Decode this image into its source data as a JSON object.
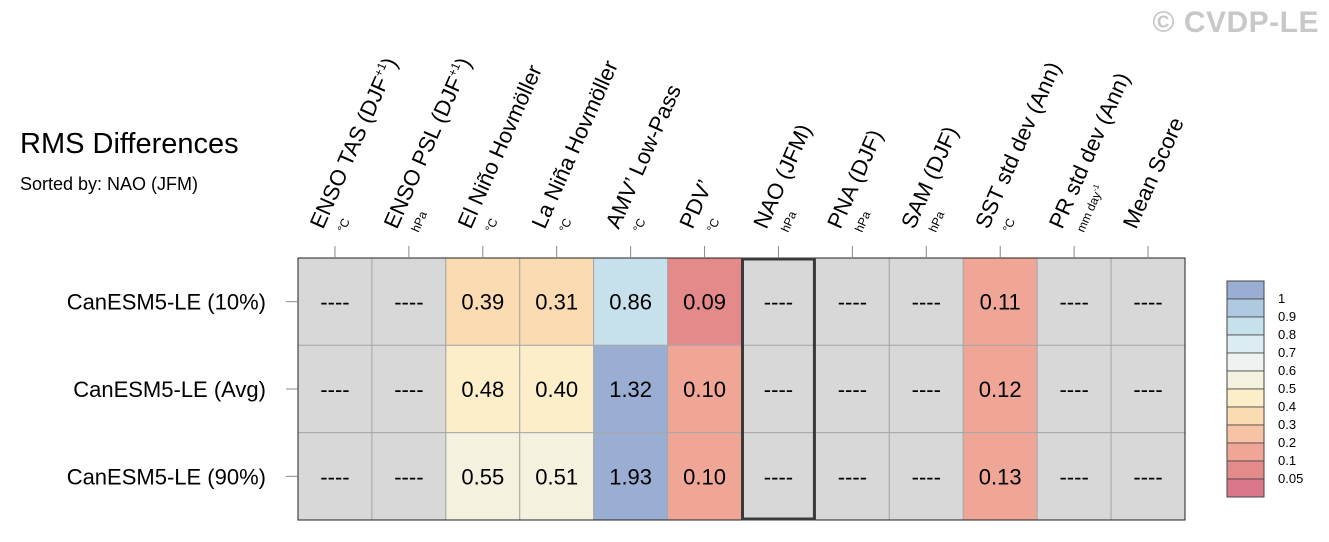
{
  "watermark": "© CVDP-LE",
  "chart_data": {
    "type": "heatmap",
    "title": "RMS Differences",
    "subtitle": "Sorted by: NAO (JFM)",
    "columns": [
      {
        "label": "ENSO TAS (DJF",
        "sup": "+1",
        "close": ")",
        "unit": "°C"
      },
      {
        "label": "ENSO PSL (DJF",
        "sup": "+1",
        "close": ")",
        "unit": "hPa"
      },
      {
        "label": "El Niño Hovmöller",
        "unit": "°C"
      },
      {
        "label": "La Niña Hovmöller",
        "unit": "°C"
      },
      {
        "label": "AMV’ Low-Pass",
        "unit": "°C"
      },
      {
        "label": "PDV’",
        "unit": "°C"
      },
      {
        "label": "NAO (JFM)",
        "unit": "hPa"
      },
      {
        "label": "PNA (DJF)",
        "unit": "hPa"
      },
      {
        "label": "SAM (DJF)",
        "unit": "hPa"
      },
      {
        "label": "SST std dev (Ann)",
        "unit": "°C"
      },
      {
        "label": "PR std dev (Ann)",
        "unit": "mm day",
        "unit_sup": "-1"
      },
      {
        "label": "Mean Score",
        "unit": ""
      }
    ],
    "rows": [
      "CanESM5-LE (10%)",
      "CanESM5-LE (Avg)",
      "CanESM5-LE (90%)"
    ],
    "missing_label": "----",
    "values": [
      [
        null,
        null,
        0.39,
        0.31,
        0.86,
        0.09,
        null,
        null,
        null,
        0.11,
        null,
        null
      ],
      [
        null,
        null,
        0.48,
        0.4,
        1.32,
        0.1,
        null,
        null,
        null,
        0.12,
        null,
        null
      ],
      [
        null,
        null,
        0.55,
        0.51,
        1.93,
        0.1,
        null,
        null,
        null,
        0.13,
        null,
        null
      ]
    ],
    "highlight_column": "NAO (JFM)",
    "colorbar": {
      "ticks": [
        "1",
        "0.9",
        "0.8",
        "0.7",
        "0.6",
        "0.5",
        "0.4",
        "0.3",
        "0.2",
        "0.1",
        "0.05"
      ],
      "colors": [
        "#9aaed3",
        "#afc9e1",
        "#c6e0ec",
        "#dcedf2",
        "#eef3f1",
        "#f4f1de",
        "#fbeec8",
        "#fbdcb2",
        "#f6c4a4",
        "#f0a697",
        "#e48a8a",
        "#d9768a"
      ]
    },
    "colors": {
      "missing": "#d8d8d8",
      "grid": "#a8a8a8",
      "highlight": "#3a3a3a",
      "ge_max": "#9aaed3"
    }
  }
}
